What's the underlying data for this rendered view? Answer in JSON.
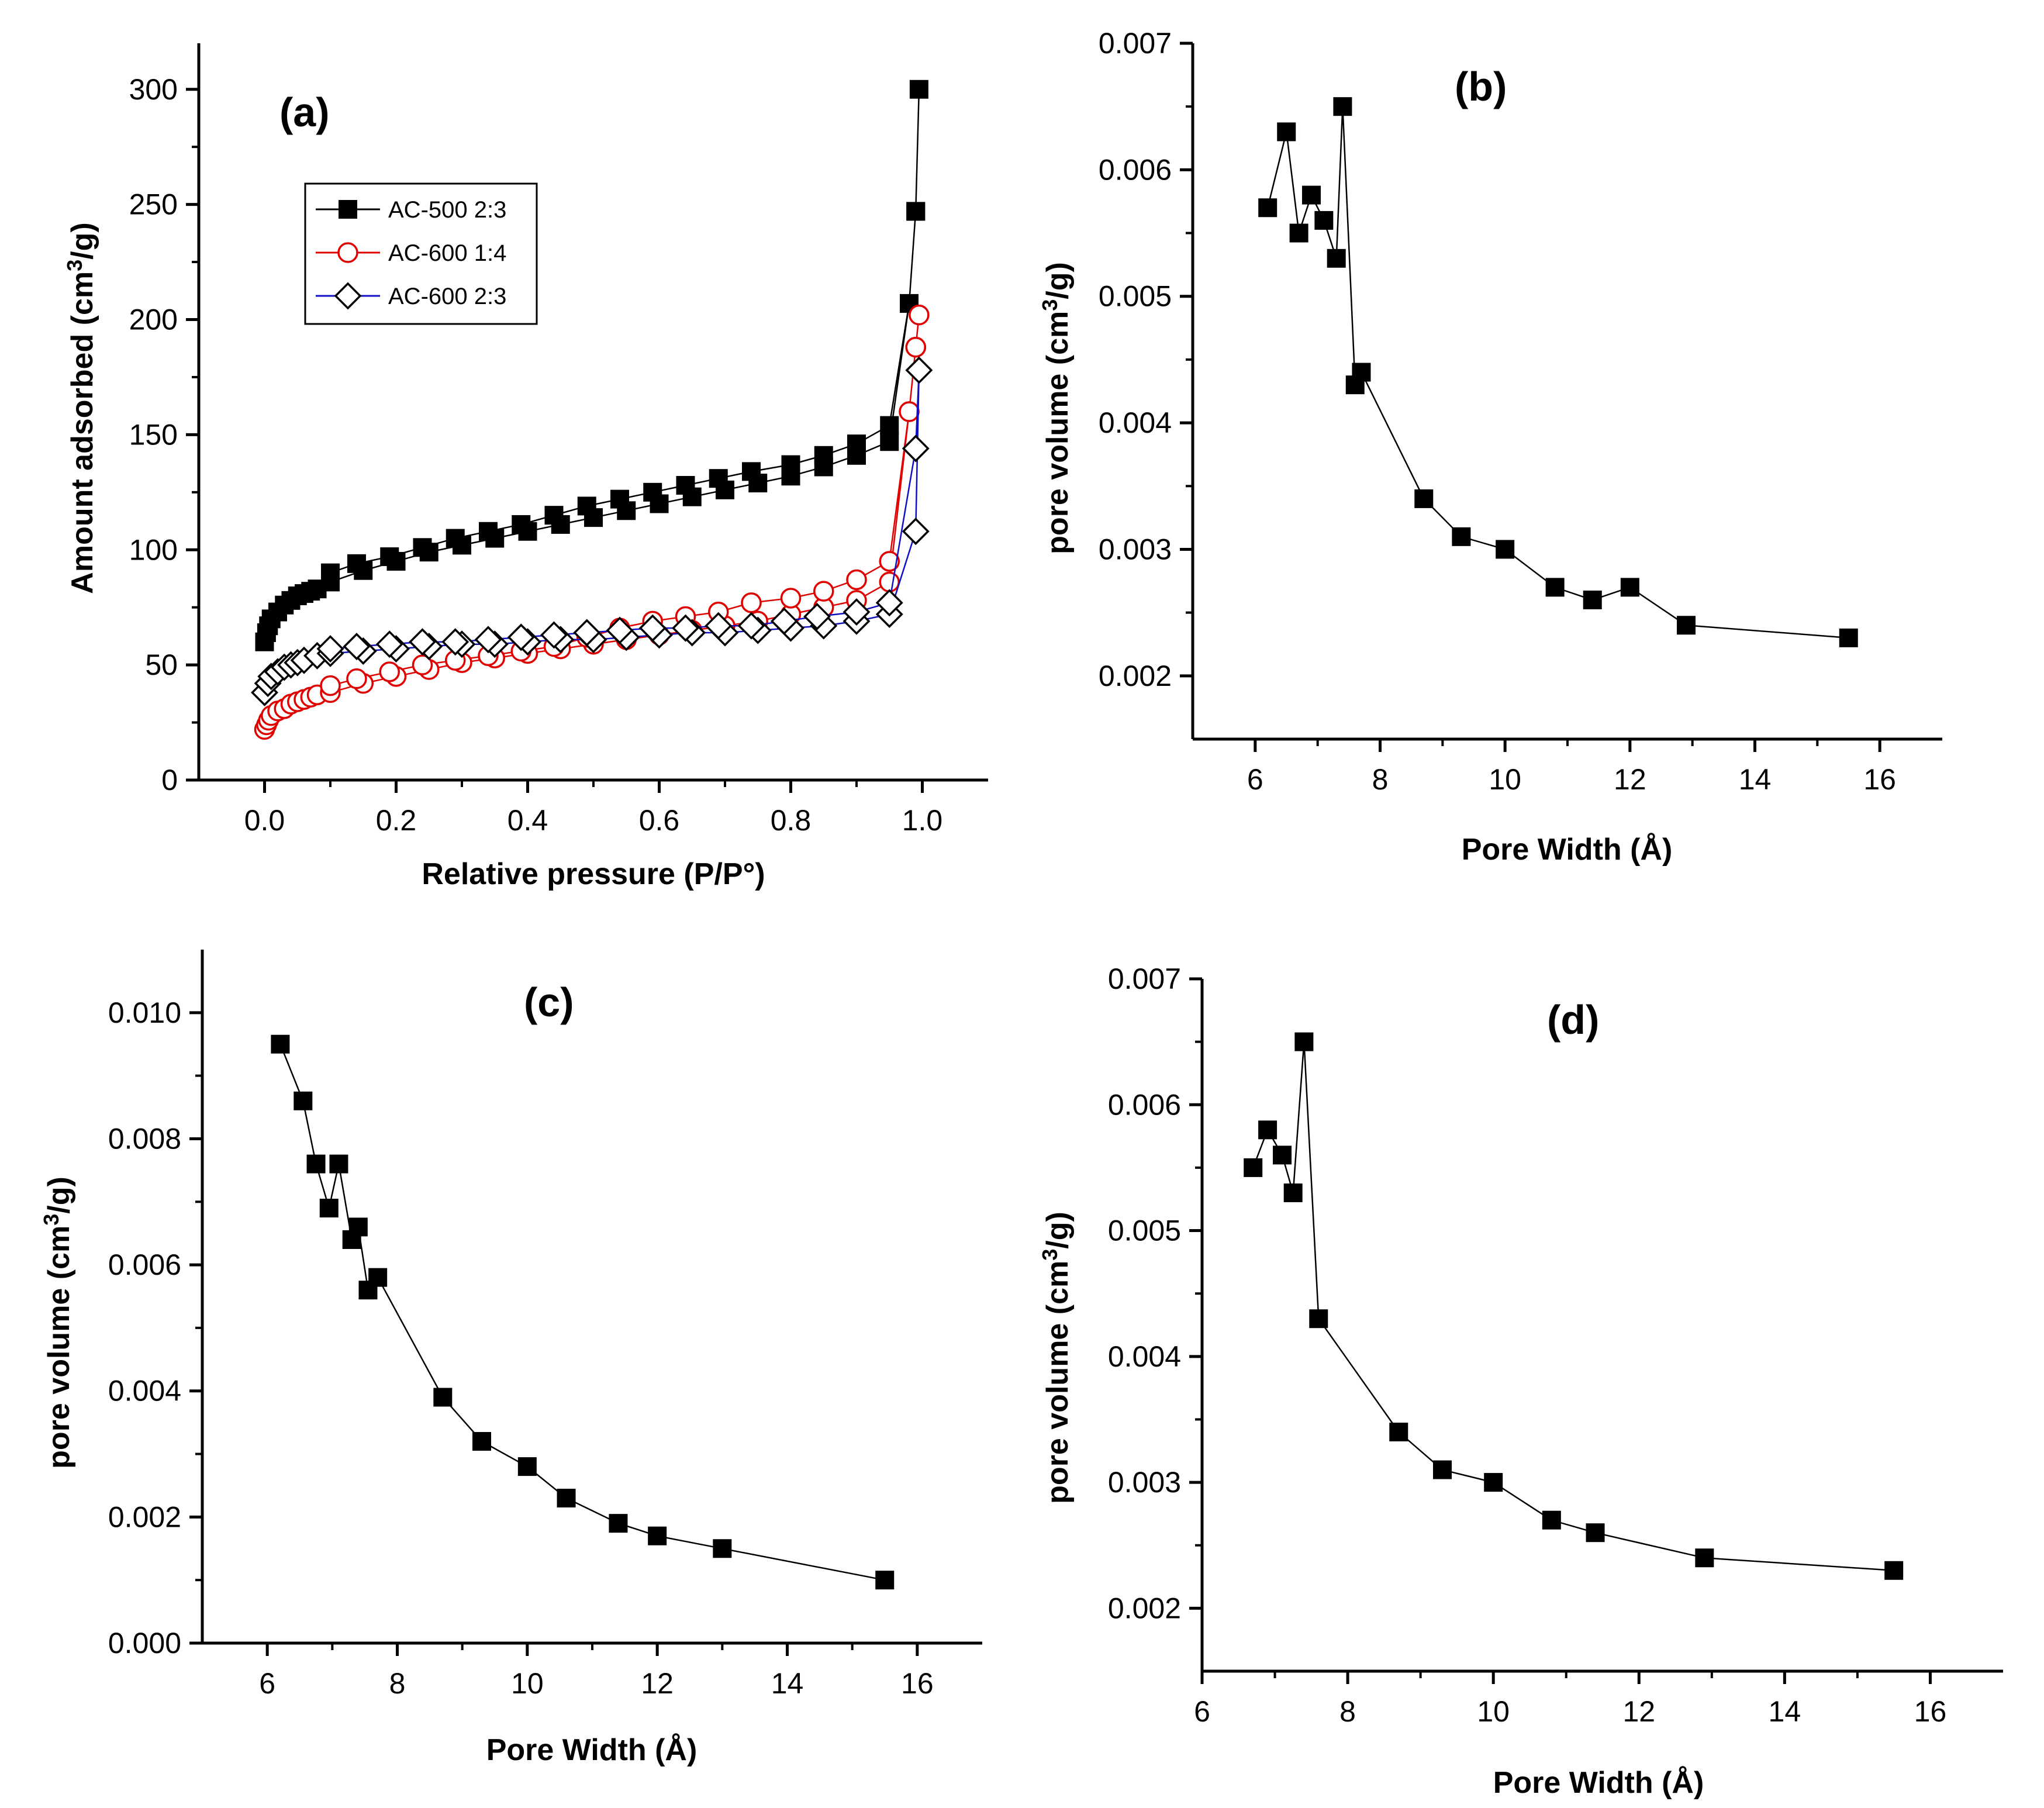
{
  "chart_data": [
    {
      "panel": "(a)",
      "type": "line",
      "xlabel": "Relative pressure (P/P°)",
      "ylabel": "Amount  adsorbed (cm3/g)",
      "xlim": [
        -0.1,
        1.1
      ],
      "ylim": [
        0,
        320
      ],
      "xticks": [
        0.0,
        0.2,
        0.4,
        0.6,
        0.8,
        1.0
      ],
      "xtick_labels": [
        "0.0",
        "0.2",
        "0.4",
        "0.6",
        "0.8",
        "1.0"
      ],
      "yticks": [
        0,
        50,
        100,
        150,
        200,
        250,
        300
      ],
      "ytick_labels": [
        "0",
        "50",
        "100",
        "150",
        "200",
        "250",
        "300"
      ],
      "legend": {
        "position": "top-left"
      },
      "series": [
        {
          "name": "AC-500 2:3",
          "marker": "square-filled",
          "color": "#000000",
          "x": [
            0.0,
            0.003,
            0.006,
            0.01,
            0.02,
            0.03,
            0.04,
            0.05,
            0.06,
            0.07,
            0.08,
            0.1,
            0.15,
            0.2,
            0.25,
            0.3,
            0.35,
            0.4,
            0.45,
            0.5,
            0.55,
            0.6,
            0.65,
            0.7,
            0.75,
            0.8,
            0.85,
            0.9,
            0.95,
            0.98,
            0.99,
            0.995,
            0.99,
            0.98,
            0.95,
            0.9,
            0.85,
            0.8,
            0.74,
            0.69,
            0.64,
            0.59,
            0.54,
            0.49,
            0.44,
            0.39,
            0.34,
            0.29,
            0.24,
            0.19,
            0.14,
            0.1
          ],
          "y": [
            60,
            64,
            67,
            70,
            73,
            76,
            78,
            80,
            81,
            82,
            83,
            86,
            91,
            95,
            99,
            102,
            105,
            108,
            111,
            114,
            117,
            120,
            123,
            126,
            129,
            132,
            136,
            141,
            147,
            207,
            247,
            300,
            247,
            207,
            154,
            146,
            141,
            137,
            134,
            131,
            128,
            125,
            122,
            119,
            115,
            111,
            108,
            105,
            101,
            97,
            94,
            90
          ]
        },
        {
          "name": "AC-600 1:4",
          "marker": "circle-open",
          "color": "#e00000",
          "x": [
            0.0,
            0.003,
            0.006,
            0.01,
            0.02,
            0.03,
            0.04,
            0.05,
            0.06,
            0.07,
            0.08,
            0.1,
            0.15,
            0.2,
            0.25,
            0.3,
            0.35,
            0.4,
            0.45,
            0.5,
            0.55,
            0.6,
            0.65,
            0.7,
            0.75,
            0.8,
            0.85,
            0.9,
            0.95,
            0.98,
            0.99,
            0.995,
            0.99,
            0.98,
            0.95,
            0.9,
            0.85,
            0.8,
            0.74,
            0.69,
            0.64,
            0.59,
            0.54,
            0.49,
            0.44,
            0.39,
            0.34,
            0.29,
            0.24,
            0.19,
            0.14,
            0.1
          ],
          "y": [
            22,
            24,
            26,
            28,
            30,
            31,
            33,
            34,
            35,
            36,
            37,
            38,
            42,
            45,
            48,
            51,
            53,
            55,
            57,
            59,
            61,
            63,
            65,
            67,
            69,
            72,
            75,
            78,
            86,
            160,
            188,
            202,
            188,
            160,
            95,
            87,
            82,
            79,
            77,
            73,
            71,
            69,
            66,
            62,
            58,
            56,
            54,
            52,
            50,
            47,
            44,
            41
          ]
        },
        {
          "name": "AC-600 2:3",
          "marker": "diamond-open",
          "color": "#1010c0",
          "x": [
            0.0,
            0.005,
            0.01,
            0.02,
            0.03,
            0.04,
            0.05,
            0.06,
            0.08,
            0.1,
            0.15,
            0.2,
            0.25,
            0.3,
            0.35,
            0.4,
            0.45,
            0.5,
            0.55,
            0.6,
            0.65,
            0.7,
            0.75,
            0.8,
            0.85,
            0.9,
            0.95,
            0.99,
            0.995,
            0.99,
            0.95,
            0.9,
            0.84,
            0.79,
            0.74,
            0.69,
            0.64,
            0.59,
            0.54,
            0.49,
            0.44,
            0.39,
            0.34,
            0.29,
            0.24,
            0.19,
            0.14,
            0.1
          ],
          "y": [
            38,
            42,
            45,
            47,
            49,
            50,
            51,
            52,
            54,
            55,
            56,
            57,
            58,
            59,
            59,
            60,
            61,
            61,
            62,
            63,
            64,
            64,
            65,
            66,
            67,
            69,
            72,
            108,
            178,
            144,
            77,
            73,
            71,
            69,
            67,
            67,
            66,
            66,
            65,
            64,
            63,
            62,
            61,
            60,
            60,
            59,
            58,
            57
          ]
        }
      ]
    },
    {
      "panel": "(b)",
      "type": "line",
      "xlabel": "Pore Width (Å)",
      "ylabel": "pore volume (cm3/g)",
      "xlim": [
        5,
        17
      ],
      "ylim": [
        0.0015,
        0.007
      ],
      "xticks": [
        6,
        8,
        10,
        12,
        14,
        16
      ],
      "xtick_labels": [
        "6",
        "8",
        "10",
        "12",
        "14",
        "16"
      ],
      "yticks": [
        0.002,
        0.003,
        0.004,
        0.005,
        0.006,
        0.007
      ],
      "ytick_labels": [
        "0.002",
        "0.003",
        "0.004",
        "0.005",
        "0.006",
        "0.007"
      ],
      "series": [
        {
          "name": "pore volume",
          "marker": "square-filled",
          "color": "#000000",
          "x": [
            6.2,
            6.5,
            6.7,
            6.9,
            7.1,
            7.3,
            7.4,
            7.6,
            7.7,
            8.7,
            9.3,
            10.0,
            10.8,
            11.4,
            12.0,
            12.9,
            15.5
          ],
          "y": [
            0.0057,
            0.0063,
            0.0055,
            0.0058,
            0.0056,
            0.0053,
            0.0065,
            0.0043,
            0.0044,
            0.0034,
            0.0031,
            0.003,
            0.0027,
            0.0026,
            0.0027,
            0.0024,
            0.0023
          ]
        }
      ]
    },
    {
      "panel": "(c)",
      "type": "line",
      "xlabel": "Pore Width (Å)",
      "ylabel": "pore volume (cm3/g)",
      "xlim": [
        5,
        17
      ],
      "ylim": [
        0,
        0.011
      ],
      "xticks": [
        6,
        8,
        10,
        12,
        14,
        16
      ],
      "xtick_labels": [
        "6",
        "8",
        "10",
        "12",
        "14",
        "16"
      ],
      "yticks": [
        0.0,
        0.002,
        0.004,
        0.006,
        0.008,
        0.01
      ],
      "ytick_labels": [
        "0.000",
        "0.002",
        "0.004",
        "0.006",
        "0.008",
        "0.010"
      ],
      "series": [
        {
          "name": "pore volume",
          "marker": "square-filled",
          "color": "#000000",
          "x": [
            6.2,
            6.55,
            6.75,
            6.95,
            7.1,
            7.3,
            7.4,
            7.55,
            7.7,
            8.7,
            9.3,
            10.0,
            10.6,
            11.4,
            12.0,
            13.0,
            15.5
          ],
          "y": [
            0.0095,
            0.0086,
            0.0076,
            0.0069,
            0.0076,
            0.0064,
            0.0066,
            0.0056,
            0.0058,
            0.0039,
            0.0032,
            0.0028,
            0.0023,
            0.0019,
            0.0017,
            0.0015,
            0.001
          ]
        }
      ]
    },
    {
      "panel": "(d)",
      "type": "line",
      "xlabel": "Pore Width (Å)",
      "ylabel": "pore volume (cm3/g)",
      "xlim": [
        6,
        17
      ],
      "ylim": [
        0.0015,
        0.007
      ],
      "xticks": [
        6,
        8,
        10,
        12,
        14,
        16
      ],
      "xtick_labels": [
        "6",
        "8",
        "10",
        "12",
        "14",
        "16"
      ],
      "yticks": [
        0.002,
        0.003,
        0.004,
        0.005,
        0.006,
        0.007
      ],
      "ytick_labels": [
        "0.002",
        "0.003",
        "0.004",
        "0.005",
        "0.006",
        "0.007"
      ],
      "series": [
        {
          "name": "pore volume",
          "marker": "square-filled",
          "color": "#000000",
          "x": [
            6.7,
            6.9,
            7.1,
            7.25,
            7.4,
            7.6,
            8.7,
            9.3,
            10.0,
            10.8,
            11.4,
            12.9,
            15.5
          ],
          "y": [
            0.0055,
            0.0058,
            0.0056,
            0.0053,
            0.0065,
            0.0043,
            0.0034,
            0.0031,
            0.003,
            0.0027,
            0.0026,
            0.0024,
            0.0023
          ]
        }
      ]
    }
  ]
}
